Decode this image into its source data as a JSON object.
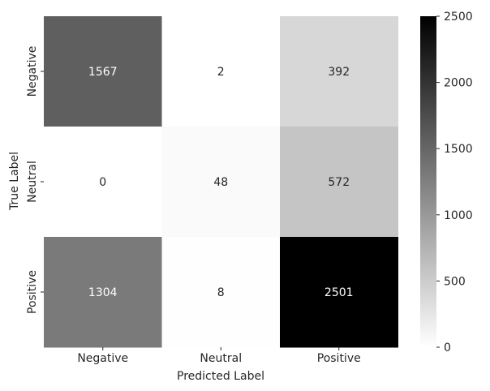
{
  "chart_data": {
    "type": "heatmap",
    "title": "",
    "xlabel": "Predicted Label",
    "ylabel": "True Label",
    "x_categories": [
      "Negative",
      "Neutral",
      "Positive"
    ],
    "y_categories": [
      "Negative",
      "Neutral",
      "Positive"
    ],
    "values": [
      [
        1567,
        2,
        392
      ],
      [
        0,
        48,
        572
      ],
      [
        1304,
        8,
        2501
      ]
    ],
    "colormap": "Greys",
    "colorbar": {
      "vmin": 0,
      "vmax": 2500,
      "ticks": [
        0,
        500,
        1000,
        1500,
        2000,
        2500
      ],
      "tick_labels": [
        "0",
        "500",
        "1000",
        "1500",
        "2000",
        "2500"
      ]
    },
    "annotations_shown": true
  }
}
